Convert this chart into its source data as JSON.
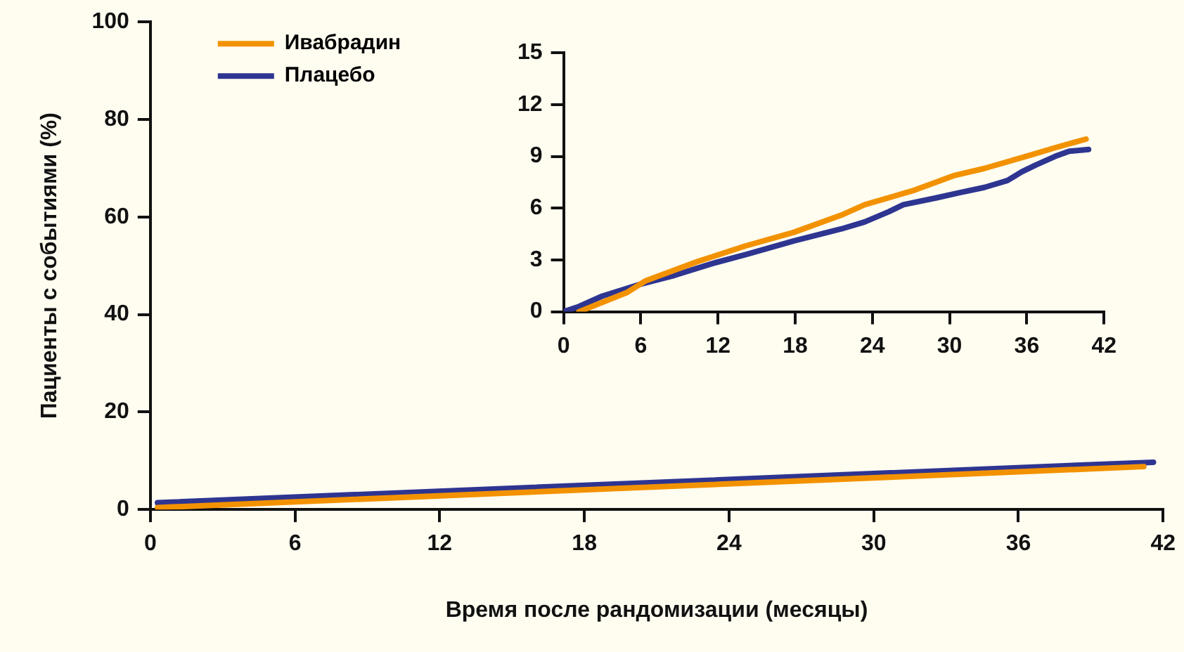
{
  "chart_data": [
    {
      "type": "line",
      "xlabel": "Время после рандомизации (месяцы)",
      "ylabel": "Пациенты с событиями (%)",
      "xlim": [
        0,
        42
      ],
      "ylim": [
        0,
        100
      ],
      "xticks": [
        0,
        6,
        12,
        18,
        24,
        30,
        36,
        42
      ],
      "yticks": [
        0,
        20,
        40,
        60,
        80,
        100
      ],
      "legend": "top left",
      "grid": false,
      "marker": "none",
      "line_style": "solid",
      "series": [
        {
          "name": "Ивабрадин",
          "color": "#f39200",
          "x": [
            0.3,
            41.2
          ],
          "values": [
            0.4,
            8.8
          ]
        },
        {
          "name": "Плацебо",
          "color": "#2e3591",
          "x": [
            0.3,
            41.6
          ],
          "values": [
            1.4,
            9.7
          ]
        }
      ]
    },
    {
      "type": "line",
      "xlim": [
        0,
        42
      ],
      "ylim": [
        0,
        15
      ],
      "xticks": [
        0,
        6,
        12,
        18,
        24,
        30,
        36,
        42
      ],
      "yticks": [
        0,
        3,
        6,
        9,
        12,
        15
      ],
      "legend": false,
      "grid": false,
      "marker": "none",
      "line_style": "solid",
      "series": [
        {
          "color": "#f39200",
          "x": [
            1.2,
            4.9,
            6.4,
            10.4,
            14.1,
            17.9,
            21.6,
            23.4,
            27.1,
            30.4,
            32.7,
            36.4,
            38.2,
            40.6
          ],
          "values": [
            0,
            1.1,
            1.8,
            2.9,
            3.8,
            4.6,
            5.6,
            6.2,
            7.0,
            7.9,
            8.3,
            9.1,
            9.5,
            10.0
          ]
        },
        {
          "color": "#2e3591",
          "x": [
            0,
            1.2,
            3.0,
            6.0,
            8.6,
            11.6,
            14.1,
            17.9,
            21.6,
            23.4,
            25.3,
            26.4,
            29.0,
            30.8,
            32.7,
            34.5,
            35.6,
            36.7,
            38.2,
            39.3,
            40.8
          ],
          "values": [
            0,
            0.3,
            0.9,
            1.6,
            2.1,
            2.8,
            3.3,
            4.1,
            4.8,
            5.2,
            5.8,
            6.2,
            6.6,
            6.9,
            7.2,
            7.6,
            8.1,
            8.5,
            9.0,
            9.3,
            9.4
          ]
        }
      ]
    }
  ]
}
